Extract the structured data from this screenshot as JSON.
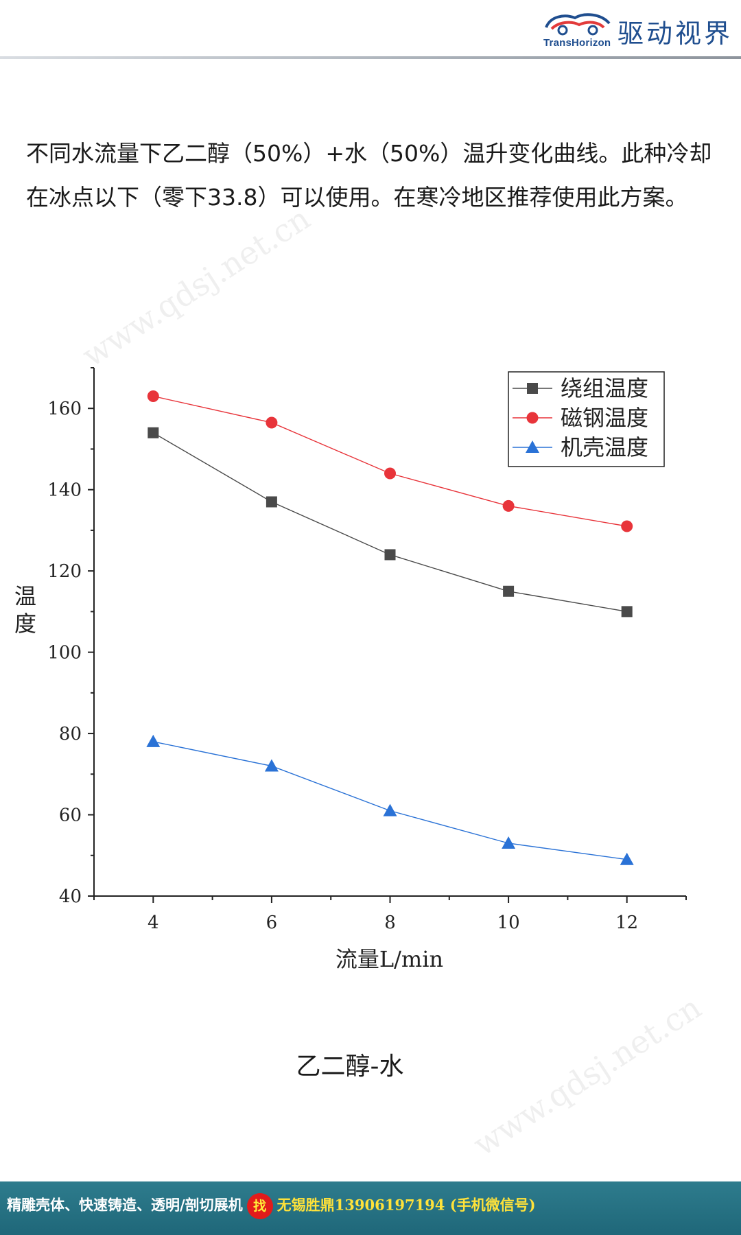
{
  "header": {
    "logo_text_en": "TransHorizon",
    "logo_text_cn": "驱动视界"
  },
  "intro_text": "不同水流量下乙二醇（50%）+水（50%）温升变化曲线。此种冷却在冰点以下（零下33.8）可以使用。在寒冷地区推荐使用此方案。",
  "watermarks": [
    "www.qdsj.net.cn",
    "www.qdsj.net.cn"
  ],
  "chart_data": {
    "type": "line",
    "title": "",
    "xlabel": "流量L/min",
    "ylabel": "温度",
    "x": [
      4,
      6,
      8,
      10,
      12
    ],
    "xlim": [
      3,
      13
    ],
    "ylim": [
      40,
      170
    ],
    "xticks": [
      4,
      6,
      8,
      10,
      12
    ],
    "yticks": [
      40,
      60,
      80,
      100,
      120,
      140,
      160
    ],
    "grid": false,
    "legend_position": "top-right",
    "series": [
      {
        "name": "绕组温度",
        "marker": "square",
        "color": "#4a4a4a",
        "values": [
          154,
          137,
          124,
          115,
          110
        ]
      },
      {
        "name": "磁钢温度",
        "marker": "circle",
        "color": "#e8343a",
        "values": [
          163,
          156.5,
          144,
          136,
          131
        ]
      },
      {
        "name": "机壳温度",
        "marker": "triangle",
        "color": "#2a72d6",
        "values": [
          78,
          72,
          61,
          53,
          49
        ]
      }
    ]
  },
  "caption": "乙二醇-水",
  "footer": {
    "left_text": "精雕壳体、快速铸造、透明/剖切展机",
    "badge": "找",
    "right_text": "无锡胜鼎13906197194 (手机微信号)"
  }
}
